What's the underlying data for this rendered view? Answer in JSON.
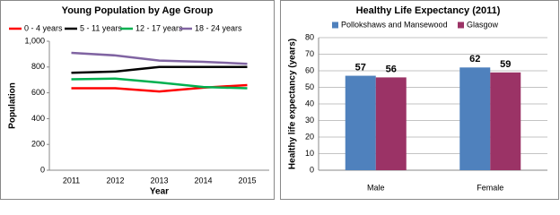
{
  "chart_data": [
    {
      "type": "line",
      "title": "Young Population by Age Group",
      "x_label": "Year",
      "y_label": "Population",
      "categories": [
        "2011",
        "2012",
        "2013",
        "2014",
        "2015"
      ],
      "series": [
        {
          "name": "0 - 4 years",
          "color": "#ff0000",
          "values": [
            635,
            635,
            610,
            640,
            660
          ]
        },
        {
          "name": "5 - 11 years",
          "color": "#000000",
          "values": [
            755,
            765,
            800,
            800,
            800
          ]
        },
        {
          "name": "12 - 17 years",
          "color": "#00b050",
          "values": [
            705,
            710,
            680,
            645,
            635
          ]
        },
        {
          "name": "18 - 24 years",
          "color": "#8064a2",
          "values": [
            910,
            890,
            850,
            840,
            825
          ]
        }
      ],
      "ylim": [
        0,
        1000
      ],
      "yticks": [
        0,
        200,
        400,
        600,
        800,
        {
          "value": 1000,
          "label": "1,000"
        }
      ],
      "grid": false
    },
    {
      "type": "bar",
      "title": "Healthy Life Expectancy (2011)",
      "y_label": "Healthy life expectancy (years)",
      "categories": [
        "Male",
        "Female"
      ],
      "series": [
        {
          "name": "Pollokshaws and Mansewood",
          "color": "#4f81bd",
          "values": [
            57,
            62
          ]
        },
        {
          "name": "Glasgow",
          "color": "#9b3366",
          "values": [
            56,
            59
          ]
        }
      ],
      "ylim": [
        0,
        80
      ],
      "yticks": [
        0,
        10,
        20,
        30,
        40,
        50,
        60,
        70,
        80
      ],
      "grid": true
    }
  ]
}
